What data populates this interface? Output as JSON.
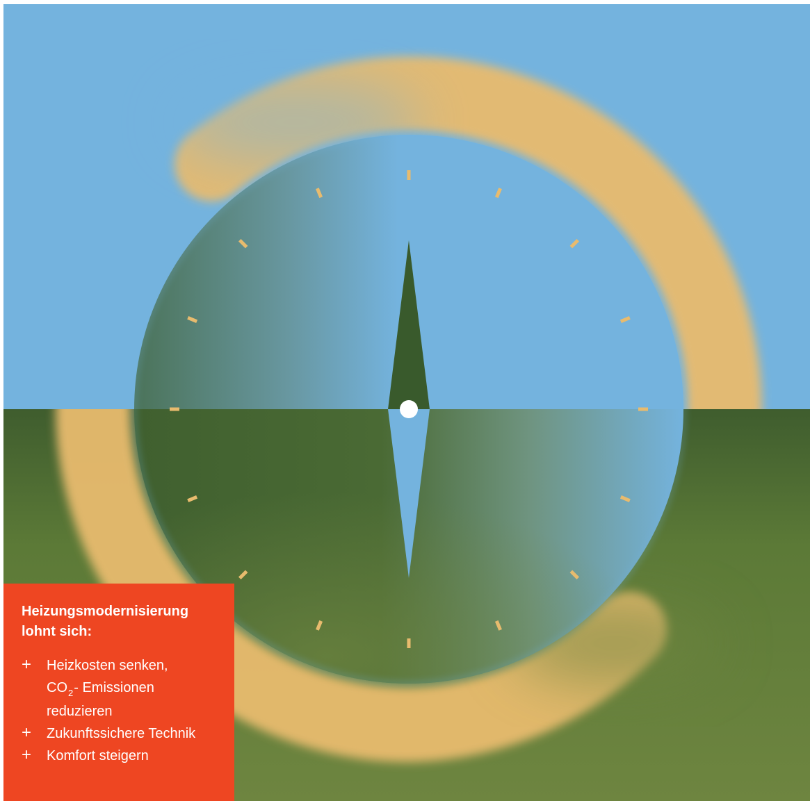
{
  "colors": {
    "sky": "#74b3de",
    "ground": "#40602f",
    "ground_light": "#6e8540",
    "ring": "#e8bb6e",
    "needle_dark": "#395a2c",
    "needle_light": "#74b3de",
    "tick": "#e8bb6e",
    "pivot": "#ffffff",
    "box": "#ee4622",
    "box_text": "#ffffff"
  },
  "icons": {
    "bullet": "plus-icon",
    "illustration": "compass-icon"
  },
  "compass": {
    "tick_count": 16
  },
  "info": {
    "title": "Heizungsmodernisierung\nlohnt sich:",
    "bullet_symbol": "+",
    "benefit_1": {
      "line1": "Heizkosten senken,",
      "co": "CO",
      "sub": "2",
      "line2_rest": "- Emissionen",
      "line3": "reduzieren"
    },
    "benefit_2": "Zukunftssichere Technik",
    "benefit_3": "Komfort steigern"
  }
}
